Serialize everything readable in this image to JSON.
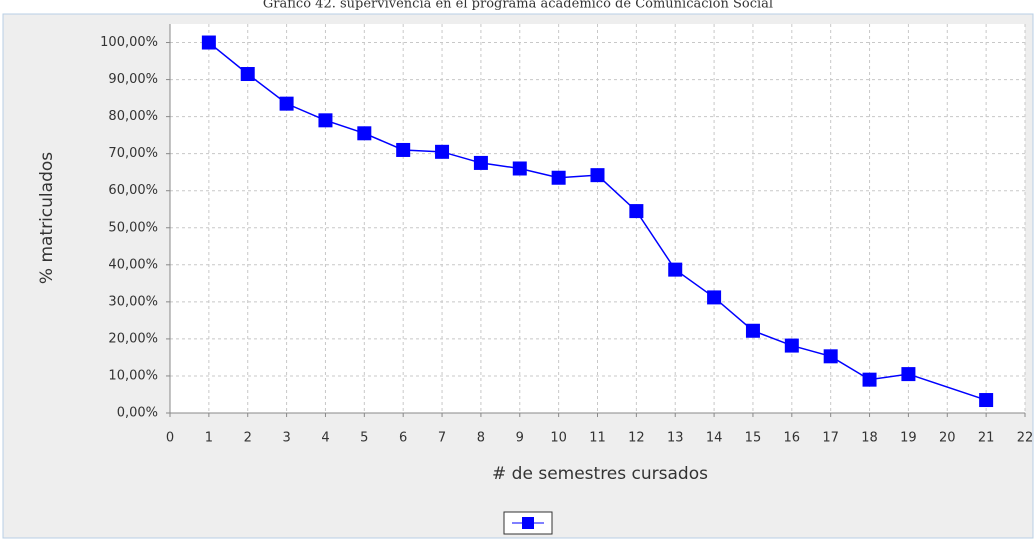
{
  "chart_data": {
    "type": "line",
    "title": "Gráfico 42. supervivencia  en el programa académico de Comunicación Social",
    "x_label": "# de semestres cursados",
    "y_label": "% matriculados",
    "x": [
      1,
      2,
      3,
      4,
      5,
      6,
      7,
      8,
      9,
      10,
      11,
      12,
      13,
      14,
      15,
      16,
      17,
      18,
      19,
      21
    ],
    "series": [
      {
        "color": "#0000ff",
        "values": [
          100,
          91.5,
          83.5,
          79,
          75.5,
          71,
          70.5,
          67.5,
          66,
          63.5,
          64.2,
          54.5,
          38.7,
          31.2,
          22.2,
          18.2,
          15.3,
          9,
          10.5,
          3.5
        ]
      }
    ],
    "xlim": [
      0,
      22
    ],
    "xticks": [
      0,
      1,
      2,
      3,
      4,
      5,
      6,
      7,
      8,
      9,
      10,
      11,
      12,
      13,
      14,
      15,
      16,
      17,
      18,
      19,
      20,
      21,
      22
    ],
    "ylim": [
      0,
      105
    ],
    "yticks": [
      {
        "value": 0,
        "label": "0,00%"
      },
      {
        "value": 10,
        "label": "10,00%"
      },
      {
        "value": 20,
        "label": "20,00%"
      },
      {
        "value": 30,
        "label": "30,00%"
      },
      {
        "value": 40,
        "label": "40,00%"
      },
      {
        "value": 50,
        "label": "50,00%"
      },
      {
        "value": 60,
        "label": "60,00%"
      },
      {
        "value": 70,
        "label": "70,00%"
      },
      {
        "value": 80,
        "label": "80,00%"
      },
      {
        "value": 90,
        "label": "90,00%"
      },
      {
        "value": 100,
        "label": "100,00%"
      }
    ],
    "grid": true
  }
}
